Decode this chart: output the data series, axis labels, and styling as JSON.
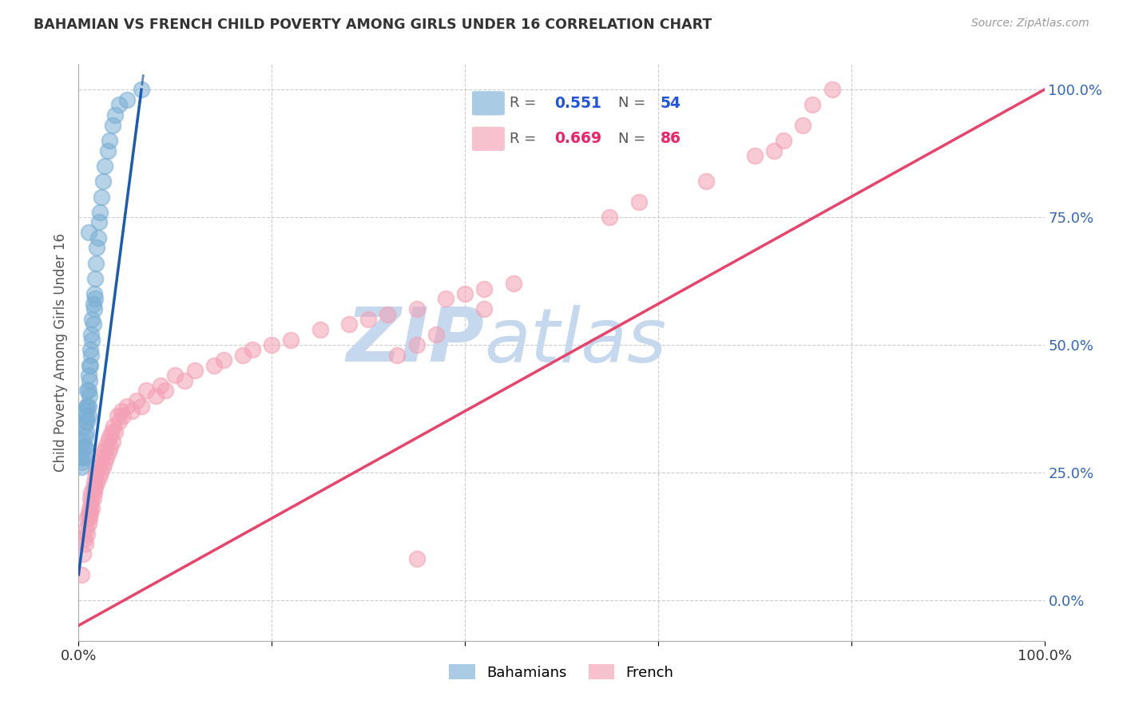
{
  "title": "BAHAMIAN VS FRENCH CHILD POVERTY AMONG GIRLS UNDER 16 CORRELATION CHART",
  "source": "Source: ZipAtlas.com",
  "ylabel": "Child Poverty Among Girls Under 16",
  "xlim": [
    0,
    1.0
  ],
  "ylim": [
    -0.08,
    1.05
  ],
  "x_ticks": [
    0.0,
    0.2,
    0.4,
    0.6,
    0.8,
    1.0
  ],
  "x_tick_labels": [
    "0.0%",
    "",
    "",
    "",
    "",
    "100.0%"
  ],
  "y_ticks_right": [
    0.0,
    0.25,
    0.5,
    0.75,
    1.0
  ],
  "y_tick_labels_right": [
    "0.0%",
    "25.0%",
    "50.0%",
    "75.0%",
    "100.0%"
  ],
  "bahamian_R": 0.551,
  "bahamian_N": 54,
  "french_R": 0.669,
  "french_N": 86,
  "bahamian_color": "#7BAFD4",
  "french_color": "#F4A0B5",
  "bahamian_line_color": "#1A5CB0",
  "french_line_color": "#E8436A",
  "watermark_zip": "ZIP",
  "watermark_atlas": "atlas",
  "watermark_color": "#C5D8EE",
  "background_color": "#FFFFFF",
  "bah_x": [
    0.002,
    0.003,
    0.004,
    0.004,
    0.005,
    0.005,
    0.006,
    0.006,
    0.006,
    0.007,
    0.007,
    0.007,
    0.007,
    0.008,
    0.008,
    0.008,
    0.009,
    0.009,
    0.009,
    0.01,
    0.01,
    0.01,
    0.01,
    0.011,
    0.011,
    0.011,
    0.012,
    0.012,
    0.013,
    0.013,
    0.014,
    0.014,
    0.015,
    0.015,
    0.016,
    0.016,
    0.017,
    0.017,
    0.018,
    0.019,
    0.02,
    0.021,
    0.022,
    0.024,
    0.025,
    0.027,
    0.03,
    0.032,
    0.035,
    0.038,
    0.042,
    0.05,
    0.065,
    0.01
  ],
  "bah_y": [
    0.28,
    0.26,
    0.3,
    0.27,
    0.31,
    0.28,
    0.34,
    0.3,
    0.28,
    0.37,
    0.35,
    0.32,
    0.3,
    0.38,
    0.36,
    0.33,
    0.41,
    0.38,
    0.35,
    0.44,
    0.41,
    0.38,
    0.36,
    0.46,
    0.43,
    0.4,
    0.49,
    0.46,
    0.52,
    0.48,
    0.55,
    0.51,
    0.58,
    0.54,
    0.6,
    0.57,
    0.63,
    0.59,
    0.66,
    0.69,
    0.71,
    0.74,
    0.76,
    0.79,
    0.82,
    0.85,
    0.88,
    0.9,
    0.93,
    0.95,
    0.97,
    0.98,
    1.0,
    0.72
  ],
  "fr_x": [
    0.003,
    0.005,
    0.006,
    0.007,
    0.008,
    0.009,
    0.009,
    0.01,
    0.01,
    0.011,
    0.011,
    0.012,
    0.012,
    0.013,
    0.013,
    0.014,
    0.015,
    0.015,
    0.016,
    0.016,
    0.017,
    0.017,
    0.018,
    0.019,
    0.02,
    0.021,
    0.022,
    0.023,
    0.024,
    0.025,
    0.026,
    0.027,
    0.028,
    0.029,
    0.03,
    0.031,
    0.032,
    0.033,
    0.034,
    0.035,
    0.036,
    0.038,
    0.04,
    0.042,
    0.044,
    0.046,
    0.05,
    0.055,
    0.06,
    0.065,
    0.07,
    0.08,
    0.085,
    0.09,
    0.1,
    0.11,
    0.12,
    0.14,
    0.15,
    0.17,
    0.18,
    0.2,
    0.22,
    0.25,
    0.28,
    0.3,
    0.32,
    0.35,
    0.38,
    0.4,
    0.42,
    0.45,
    0.35,
    0.33,
    0.37,
    0.42,
    0.55,
    0.58,
    0.65,
    0.7,
    0.72,
    0.73,
    0.75,
    0.35,
    0.76,
    0.78
  ],
  "fr_y": [
    0.05,
    0.09,
    0.12,
    0.11,
    0.14,
    0.13,
    0.16,
    0.15,
    0.17,
    0.16,
    0.18,
    0.17,
    0.2,
    0.19,
    0.21,
    0.18,
    0.22,
    0.2,
    0.23,
    0.21,
    0.24,
    0.22,
    0.25,
    0.23,
    0.26,
    0.24,
    0.27,
    0.25,
    0.28,
    0.26,
    0.29,
    0.27,
    0.3,
    0.28,
    0.31,
    0.29,
    0.32,
    0.3,
    0.33,
    0.31,
    0.34,
    0.33,
    0.36,
    0.35,
    0.37,
    0.36,
    0.38,
    0.37,
    0.39,
    0.38,
    0.41,
    0.4,
    0.42,
    0.41,
    0.44,
    0.43,
    0.45,
    0.46,
    0.47,
    0.48,
    0.49,
    0.5,
    0.51,
    0.53,
    0.54,
    0.55,
    0.56,
    0.57,
    0.59,
    0.6,
    0.61,
    0.62,
    0.5,
    0.48,
    0.52,
    0.57,
    0.75,
    0.78,
    0.82,
    0.87,
    0.88,
    0.9,
    0.93,
    0.08,
    0.97,
    1.0
  ]
}
